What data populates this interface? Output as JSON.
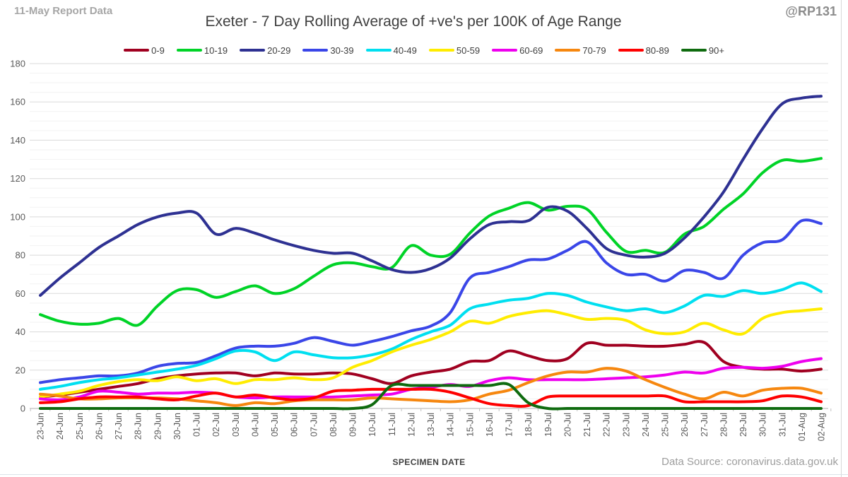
{
  "report_note": "11-May Report Data",
  "watermark": "@RP131",
  "data_source": "Data Source: coronavirus.data.gov.uk",
  "colors": {
    "grid_minor": "#f2f2f2",
    "grid_major": "#dadada",
    "axis": "#c0c0c0",
    "tick_label": "#595959",
    "title_text": "#3f3f3f",
    "note_text": "#a6a6a6"
  },
  "chart_data": {
    "type": "line",
    "title": "Exeter - 7 Day Rolling Average of +ve's per 100K of Age Range",
    "xlabel": "SPECIMEN DATE",
    "ylabel": "",
    "ylim": [
      0,
      180
    ],
    "y_major_step": 20,
    "y_minor_step": 5,
    "y_tick_labels": [
      "0",
      "20",
      "40",
      "60",
      "80",
      "100",
      "120",
      "140",
      "160",
      "180"
    ],
    "grid": true,
    "legend_position": "top",
    "smooth_lines": true,
    "categories": [
      "23-Jun",
      "24-Jun",
      "25-Jun",
      "26-Jun",
      "27-Jun",
      "28-Jun",
      "29-Jun",
      "30-Jun",
      "01-Jul",
      "02-Jul",
      "03-Jul",
      "04-Jul",
      "05-Jul",
      "06-Jul",
      "07-Jul",
      "08-Jul",
      "09-Jul",
      "10-Jul",
      "11-Jul",
      "12-Jul",
      "13-Jul",
      "14-Jul",
      "15-Jul",
      "16-Jul",
      "17-Jul",
      "18-Jul",
      "19-Jul",
      "20-Jul",
      "21-Jul",
      "22-Jul",
      "23-Jul",
      "24-Jul",
      "25-Jul",
      "26-Jul",
      "27-Jul",
      "28-Jul",
      "29-Jul",
      "30-Jul",
      "31-Jul",
      "01-Aug",
      "02-Aug"
    ],
    "series": [
      {
        "name": "0-9",
        "color": "#A00020",
        "values": [
          6,
          7,
          8.5,
          10,
          11.5,
          13,
          15.5,
          17,
          18,
          18.5,
          18.5,
          17,
          18.5,
          18,
          18,
          18.5,
          18,
          15.5,
          13,
          17,
          19,
          20.5,
          24.5,
          25,
          30,
          27.5,
          25,
          26,
          34,
          33,
          33,
          32.5,
          32.5,
          33.5,
          34.5,
          24.5,
          21.5,
          20.5,
          20.5,
          19.5,
          20.5
        ]
      },
      {
        "name": "10-19",
        "color": "#00D327",
        "values": [
          49,
          45.5,
          44,
          44.5,
          47,
          43.5,
          53.5,
          61.5,
          62,
          58,
          61,
          64,
          60,
          62.5,
          69,
          75,
          76,
          74,
          73.5,
          85,
          80,
          80.5,
          91.5,
          100.5,
          104.5,
          107.5,
          103.5,
          105.5,
          104,
          92,
          82,
          82.5,
          81.5,
          91,
          95,
          104,
          112,
          123,
          129.5,
          129,
          130.5
        ]
      },
      {
        "name": "20-29",
        "color": "#2E3192",
        "values": [
          59,
          68,
          76,
          84,
          90,
          96,
          100,
          102,
          102,
          91,
          94,
          91.5,
          88,
          85,
          82.5,
          81,
          81,
          77,
          72.5,
          71,
          73,
          78.5,
          88.5,
          96,
          97.5,
          98,
          105,
          103,
          94,
          83.5,
          80,
          79,
          81,
          89,
          100,
          113,
          130,
          146,
          159,
          162,
          163
        ]
      },
      {
        "name": "30-39",
        "color": "#3A46E8",
        "values": [
          13.5,
          15,
          16,
          17,
          17,
          18.5,
          22,
          23.5,
          24,
          27.5,
          31.5,
          32.5,
          32.5,
          34,
          37,
          35,
          33,
          35,
          37.5,
          40.5,
          43,
          50,
          68,
          71,
          74,
          77.5,
          78,
          82.5,
          87,
          76,
          70,
          70,
          66.5,
          72,
          71,
          68,
          80,
          86.5,
          88,
          98,
          96.5
        ]
      },
      {
        "name": "40-49",
        "color": "#00DFF0",
        "values": [
          10,
          11.5,
          13.5,
          15,
          16,
          17.5,
          19,
          20.5,
          22.5,
          26,
          30,
          29.5,
          25,
          29.5,
          28,
          26.5,
          26.5,
          28,
          31,
          36,
          40,
          43.5,
          52,
          54.5,
          56.5,
          57.5,
          60,
          59,
          55.5,
          53,
          51,
          52,
          50,
          53.5,
          59,
          58.5,
          61.5,
          60,
          62,
          65.5,
          61
        ]
      },
      {
        "name": "50-59",
        "color": "#FFEC00",
        "values": [
          6,
          7.5,
          9,
          12,
          14,
          15,
          14.5,
          16.5,
          14.5,
          15.5,
          13,
          15,
          15,
          16,
          15,
          16,
          21.5,
          25,
          29.5,
          33,
          36,
          40,
          45.5,
          44.5,
          48,
          50,
          51,
          49,
          46.5,
          47,
          46,
          41,
          39,
          40,
          44.5,
          41,
          39,
          47,
          50,
          51,
          52
        ]
      },
      {
        "name": "60-69",
        "color": "#EE00EE",
        "values": [
          5,
          4.5,
          6,
          9,
          8.5,
          7.5,
          8,
          8,
          8.5,
          8,
          6,
          5.5,
          6,
          6,
          6,
          6,
          6.5,
          7,
          7.5,
          10,
          11,
          12.5,
          11.5,
          14.5,
          16,
          15,
          15,
          15,
          15,
          15.5,
          16,
          16.5,
          17.5,
          19,
          18.5,
          21,
          21.5,
          21,
          22,
          24.5,
          26
        ]
      },
      {
        "name": "70-79",
        "color": "#F6870F",
        "values": [
          7.5,
          6.5,
          5,
          5,
          5.5,
          5.5,
          5.5,
          5,
          4,
          3,
          1.5,
          3,
          2.5,
          4,
          4.5,
          4.5,
          4.5,
          5.5,
          5,
          4.5,
          4,
          3.5,
          4.5,
          7.5,
          9.5,
          13.5,
          17,
          19,
          19,
          21,
          19.5,
          15,
          11,
          7.5,
          5,
          8.5,
          6.5,
          9.5,
          10.5,
          10.5,
          8
        ]
      },
      {
        "name": "80-89",
        "color": "#FE0000",
        "values": [
          3,
          3.5,
          5,
          6,
          6,
          6,
          5,
          4.5,
          6.5,
          8,
          6,
          7,
          5.5,
          4.5,
          5.5,
          9,
          9.5,
          10,
          10,
          10,
          10,
          8.5,
          5.5,
          2.5,
          1.5,
          1.5,
          6,
          6.5,
          6.5,
          6.5,
          6.5,
          6.5,
          6.5,
          3.5,
          3.5,
          3.5,
          3.5,
          4,
          6.5,
          6,
          3.5
        ]
      },
      {
        "name": "90+",
        "color": "#0F6B0F",
        "values": [
          0,
          0,
          0,
          0,
          0,
          0,
          0,
          0,
          0,
          0,
          0,
          0,
          0,
          0,
          0,
          0,
          0,
          2,
          12,
          12,
          12,
          12,
          12,
          12,
          12.5,
          3,
          0,
          0,
          0,
          0,
          0,
          0,
          0,
          0,
          0,
          0,
          0,
          0,
          0,
          0,
          0
        ]
      }
    ]
  }
}
